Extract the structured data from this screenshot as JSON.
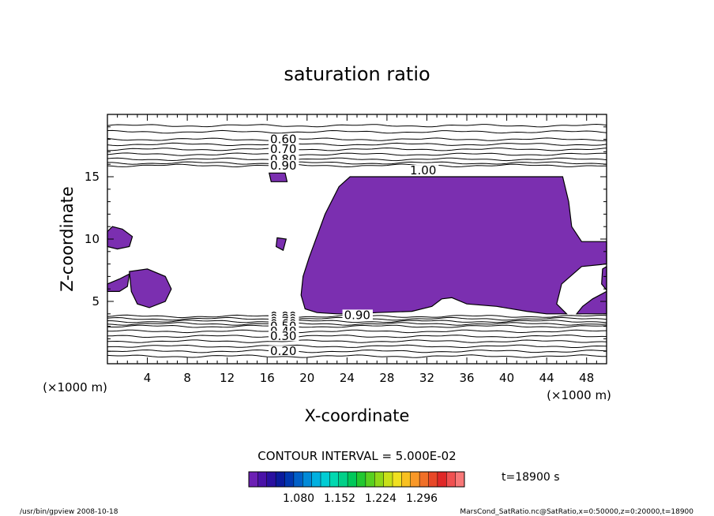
{
  "chart_data": {
    "type": "contour",
    "title": "saturation ratio",
    "xlabel": "X-coordinate",
    "ylabel": "Z-coordinate",
    "x_unit": "(×1000 m)",
    "y_unit": "(×1000 m)",
    "xlim": [
      0,
      50
    ],
    "ylim": [
      0,
      20
    ],
    "x_ticks": [
      4,
      8,
      12,
      16,
      20,
      24,
      28,
      32,
      36,
      40,
      44,
      48
    ],
    "y_ticks": [
      5,
      10,
      15
    ],
    "upper_contours": [
      {
        "z": 19.1,
        "label": ""
      },
      {
        "z": 18.6,
        "label": ""
      },
      {
        "z": 18.0,
        "label": "0.60"
      },
      {
        "z": 17.6,
        "label": ""
      },
      {
        "z": 17.2,
        "label": "0.70"
      },
      {
        "z": 16.8,
        "label": ""
      },
      {
        "z": 16.4,
        "label": "0.80"
      },
      {
        "z": 16.1,
        "label": ""
      },
      {
        "z": 15.9,
        "label": "0.90"
      }
    ],
    "lower_contours": [
      {
        "z": 3.8,
        "label": "0.90"
      },
      {
        "z": 3.6,
        "label": "0.80"
      },
      {
        "z": 3.4,
        "label": "0.70"
      },
      {
        "z": 3.2,
        "label": "0.60"
      },
      {
        "z": 3.0,
        "label": "0.50"
      },
      {
        "z": 2.6,
        "label": "0.40"
      },
      {
        "z": 2.2,
        "label": "0.30"
      },
      {
        "z": 1.8,
        "label": ""
      },
      {
        "z": 1.4,
        "label": ""
      },
      {
        "z": 1.0,
        "label": "0.20"
      },
      {
        "z": 0.6,
        "label": ""
      }
    ],
    "contour_label_1": "1.00",
    "contour_label_1_pos": [
      30.3,
      15.5
    ],
    "contour_label_2": "0.90",
    "contour_label_2_pos": [
      23.7,
      3.9
    ],
    "supersaturated_regions": [
      {
        "points": [
          [
            20.2,
            8.5
          ],
          [
            21.8,
            12.0
          ],
          [
            23.2,
            14.2
          ],
          [
            24.3,
            15.0
          ],
          [
            30.0,
            15.0
          ],
          [
            34.0,
            15.0
          ],
          [
            40.0,
            15.0
          ],
          [
            45.6,
            15.0
          ],
          [
            46.2,
            13.0
          ],
          [
            46.5,
            11.0
          ],
          [
            47.5,
            9.8
          ],
          [
            50.0,
            9.8
          ],
          [
            50.0,
            8.0
          ],
          [
            47.5,
            7.8
          ],
          [
            45.5,
            6.4
          ],
          [
            45.0,
            4.8
          ],
          [
            46.0,
            4.0
          ],
          [
            44.0,
            4.0
          ],
          [
            42.0,
            4.2
          ],
          [
            39.0,
            4.6
          ],
          [
            36.0,
            4.8
          ],
          [
            34.5,
            5.3
          ],
          [
            33.5,
            5.2
          ],
          [
            32.5,
            4.6
          ],
          [
            30.5,
            4.2
          ],
          [
            27.0,
            4.1
          ],
          [
            25.0,
            4.0
          ],
          [
            23.0,
            4.0
          ],
          [
            21.0,
            4.1
          ],
          [
            19.8,
            4.4
          ],
          [
            19.4,
            5.5
          ],
          [
            19.6,
            7.0
          ]
        ]
      },
      {
        "points": [
          [
            47.0,
            4.0
          ],
          [
            50.0,
            4.0
          ],
          [
            50.0,
            5.8
          ],
          [
            48.6,
            5.2
          ],
          [
            47.6,
            4.6
          ]
        ]
      },
      {
        "points": [
          [
            0.0,
            10.6
          ],
          [
            0.5,
            11.0
          ],
          [
            1.5,
            10.8
          ],
          [
            2.5,
            10.2
          ],
          [
            2.2,
            9.4
          ],
          [
            1.0,
            9.2
          ],
          [
            0.0,
            9.4
          ]
        ]
      },
      {
        "points": [
          [
            0.0,
            6.4
          ],
          [
            1.2,
            6.8
          ],
          [
            2.2,
            7.2
          ],
          [
            2.0,
            6.2
          ],
          [
            1.2,
            5.8
          ],
          [
            0.0,
            5.8
          ]
        ]
      },
      {
        "points": [
          [
            2.2,
            7.4
          ],
          [
            4.0,
            7.6
          ],
          [
            5.8,
            7.0
          ],
          [
            6.4,
            6.0
          ],
          [
            5.8,
            5.0
          ],
          [
            4.2,
            4.5
          ],
          [
            3.0,
            4.8
          ],
          [
            2.4,
            5.8
          ]
        ]
      },
      {
        "points": [
          [
            16.2,
            15.3
          ],
          [
            17.8,
            15.3
          ],
          [
            18.0,
            14.6
          ],
          [
            16.4,
            14.6
          ]
        ]
      },
      {
        "points": [
          [
            17.0,
            10.1
          ],
          [
            17.9,
            10.0
          ],
          [
            17.6,
            9.1
          ],
          [
            16.9,
            9.4
          ]
        ]
      },
      {
        "points": [
          [
            49.6,
            7.6
          ],
          [
            50.0,
            7.8
          ],
          [
            50.0,
            5.9
          ],
          [
            49.5,
            6.4
          ]
        ]
      }
    ],
    "region_color": "#7b2fb0",
    "colorbar": {
      "ticks": [
        "1.080",
        "1.152",
        "1.224",
        "1.296"
      ],
      "colors": [
        "#6c1fb4",
        "#4a12a8",
        "#2a10a0",
        "#0b1a9c",
        "#0037b0",
        "#0060c8",
        "#008ad8",
        "#00b0e0",
        "#00ccd4",
        "#00d8b0",
        "#00d088",
        "#00c85a",
        "#22c830",
        "#58d020",
        "#90d818",
        "#c8e018",
        "#f0e020",
        "#f8c020",
        "#f89828",
        "#f07028",
        "#e84828",
        "#e02828",
        "#f05050",
        "#f87878"
      ]
    },
    "contour_interval": "CONTOUR INTERVAL = 5.000E-02",
    "time_label": "t=18900 s"
  },
  "footer": {
    "left": "/usr/bin/gpview   2008-10-18",
    "right": "MarsCond_SatRatio.nc@SatRatio,x=0:50000,z=0:20000,t=18900"
  }
}
